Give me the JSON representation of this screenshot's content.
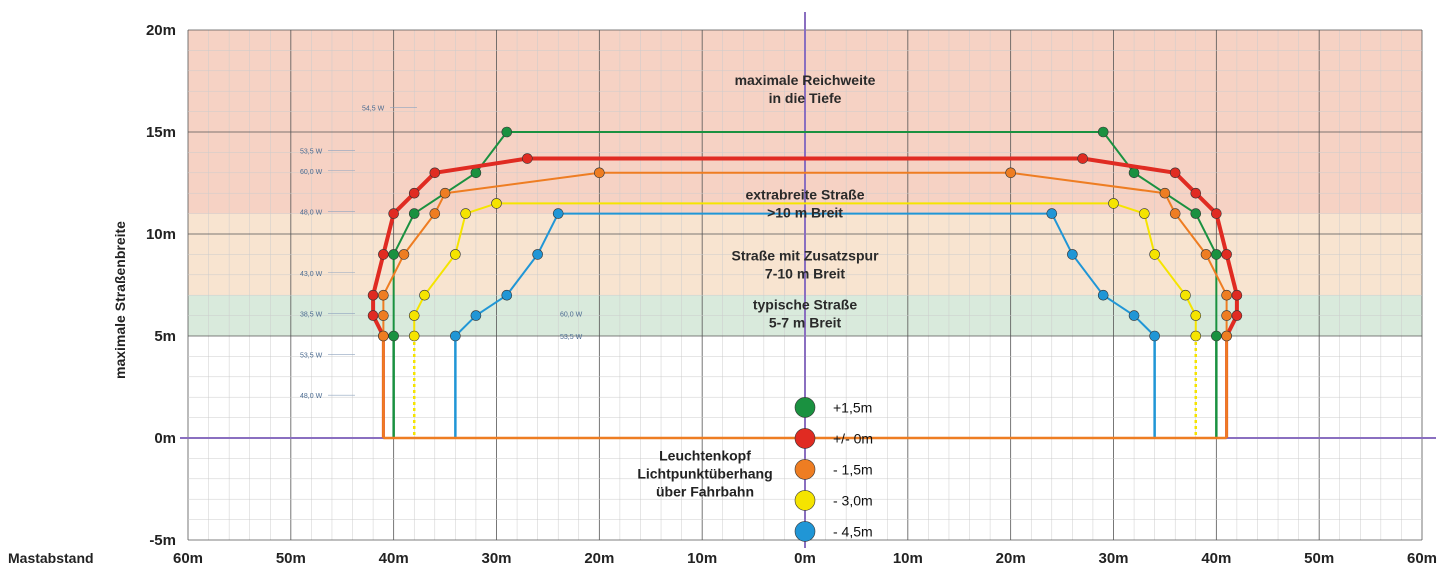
{
  "chart_data": {
    "type": "line",
    "xlabel": "Mastabstand",
    "ylabel": "maximale Straßenbreite",
    "xlim": [
      -60,
      60
    ],
    "ylim": [
      -5,
      20
    ],
    "x_ticks": [
      "60m",
      "50m",
      "40m",
      "30m",
      "20m",
      "10m",
      "0m",
      "10m",
      "20m",
      "30m",
      "40m",
      "50m",
      "60m"
    ],
    "y_ticks": [
      {
        "value": 20,
        "label": "20m"
      },
      {
        "value": 15,
        "label": "15m"
      },
      {
        "value": 10,
        "label": "10m"
      },
      {
        "value": 5,
        "label": "5m"
      },
      {
        "value": 0,
        "label": "0m"
      },
      {
        "value": -5,
        "label": "-5m"
      }
    ],
    "zones": [
      {
        "from": 11,
        "to": 20,
        "color": "#f6d2c4",
        "label": [
          "maximale Reichweite",
          "in die Tiefe"
        ],
        "label_x": 0,
        "label_y": 17.3
      },
      {
        "from": 7,
        "to": 11,
        "color": "#f8e4d0",
        "label": [
          "extrabreite Straße",
          ">10 m Breit"
        ],
        "label_x": 0,
        "label_y": 11.7
      },
      {
        "from": 5,
        "to": 7,
        "color": "#d9eadc",
        "label": [
          "Straße mit Zusatzspur",
          "7-10 m Breit"
        ],
        "label_x": 0,
        "label_y": 8.7
      },
      {
        "from": 5,
        "to": 7,
        "color": "",
        "label": [
          "typische Straße",
          "5-7 m Breit"
        ],
        "label_x": 0,
        "label_y": 6.3
      }
    ],
    "series": [
      {
        "name": "+1,5m",
        "color": "#1a9140",
        "dashed_from": null,
        "points": [
          [
            -40,
            5
          ],
          [
            -40,
            9
          ],
          [
            -38,
            11
          ],
          [
            -32,
            13
          ],
          [
            -29,
            15
          ],
          [
            29,
            15
          ],
          [
            32,
            13
          ],
          [
            38,
            11
          ],
          [
            40,
            9
          ],
          [
            40,
            5
          ]
        ],
        "post_x": 40
      },
      {
        "name": "+/- 0m",
        "color": "#e02b22",
        "dashed_from": null,
        "points": [
          [
            -41,
            5
          ],
          [
            -42,
            6
          ],
          [
            -42,
            7
          ],
          [
            -41,
            9
          ],
          [
            -40,
            11
          ],
          [
            -38,
            12
          ],
          [
            -36,
            13
          ],
          [
            -27,
            13.7
          ],
          [
            27,
            13.7
          ],
          [
            36,
            13
          ],
          [
            38,
            12
          ],
          [
            40,
            11
          ],
          [
            41,
            9
          ],
          [
            42,
            7
          ],
          [
            42,
            6
          ],
          [
            41,
            5
          ]
        ],
        "post_x": 41
      },
      {
        "name": "- 1,5m",
        "color": "#ee7d22",
        "dashed_from": null,
        "points": [
          [
            -41,
            5
          ],
          [
            -41,
            6
          ],
          [
            -41,
            7
          ],
          [
            -39,
            9
          ],
          [
            -36,
            11
          ],
          [
            -35,
            12
          ],
          [
            -20,
            13
          ],
          [
            20,
            13
          ],
          [
            35,
            12
          ],
          [
            36,
            11
          ],
          [
            39,
            9
          ],
          [
            41,
            7
          ],
          [
            41,
            6
          ],
          [
            41,
            5
          ]
        ],
        "post_x": 41
      },
      {
        "name": "- 3,0m",
        "color": "#f5e400",
        "dashed_from": 38,
        "points": [
          [
            -38,
            5
          ],
          [
            -38,
            6
          ],
          [
            -37,
            7
          ],
          [
            -34,
            9
          ],
          [
            -33,
            11
          ],
          [
            -30,
            11.5
          ],
          [
            30,
            11.5
          ],
          [
            33,
            11
          ],
          [
            34,
            9
          ],
          [
            37,
            7
          ],
          [
            38,
            6
          ],
          [
            38,
            5
          ]
        ],
        "post_x": 38
      },
      {
        "name": "- 4,5m",
        "color": "#2096d6",
        "dashed_from": null,
        "points": [
          [
            -34,
            5
          ],
          [
            -32,
            6
          ],
          [
            -29,
            7
          ],
          [
            -26,
            9
          ],
          [
            -24,
            11
          ],
          [
            24,
            11
          ],
          [
            26,
            9
          ],
          [
            29,
            7
          ],
          [
            32,
            6
          ],
          [
            34,
            5
          ]
        ],
        "post_x": 34
      }
    ],
    "legend": {
      "title": [
        "Leuchtenkopf",
        "Lichtpunktüberhang",
        "über Fahrbahn"
      ],
      "items": [
        {
          "label": "+1,5m",
          "color": "#1a9140"
        },
        {
          "label": "+/- 0m",
          "color": "#e02b22"
        },
        {
          "label": "- 1,5m",
          "color": "#ee7d22"
        },
        {
          "label": "- 3,0m",
          "color": "#f5e400"
        },
        {
          "label": "- 4,5m",
          "color": "#2096d6"
        }
      ]
    },
    "wattage_labels": {
      "left": [
        "54,5 W",
        "53,5 W",
        "60,0 W",
        "48,0 W",
        "43,0 W",
        "38,5 W",
        "53,5 W",
        "48,0 W"
      ],
      "right": [
        "60,0 W",
        "53,5 W"
      ]
    }
  }
}
